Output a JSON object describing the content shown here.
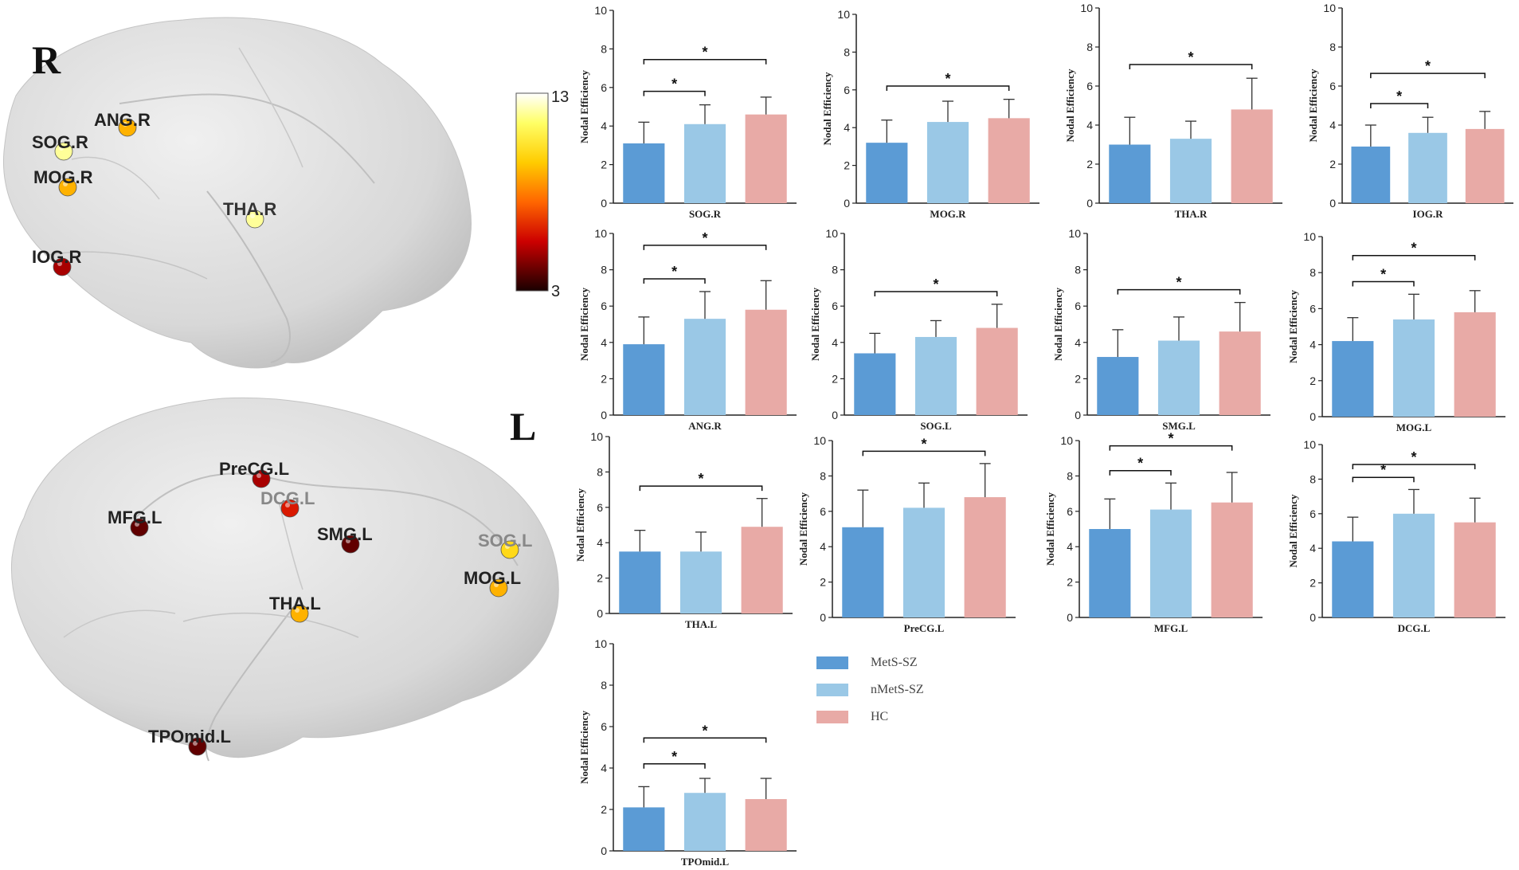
{
  "brain": {
    "right_label": "R",
    "left_label": "L",
    "colorbar": {
      "max_label": "13",
      "min_label": "3",
      "min": 3,
      "max": 13
    },
    "right_nodes": [
      {
        "label": "SOG.R",
        "value": 12,
        "label_color": "#222222"
      },
      {
        "label": "ANG.R",
        "value": 9,
        "label_color": "#222222"
      },
      {
        "label": "MOG.R",
        "value": 9,
        "label_color": "#222222"
      },
      {
        "label": "THA.R",
        "value": 12,
        "label_color": "#333333"
      },
      {
        "label": "IOG.R",
        "value": 5,
        "label_color": "#222222"
      }
    ],
    "left_nodes": [
      {
        "label": "PreCG.L",
        "value": 5,
        "label_color": "#222222"
      },
      {
        "label": "DCG.L",
        "value": 6,
        "label_color": "#888888"
      },
      {
        "label": "MFG.L",
        "value": 4,
        "label_color": "#222222"
      },
      {
        "label": "SMG.L",
        "value": 4,
        "label_color": "#222222"
      },
      {
        "label": "SOG.L",
        "value": 10,
        "label_color": "#888888"
      },
      {
        "label": "MOG.L",
        "value": 9,
        "label_color": "#222222"
      },
      {
        "label": "THA.L",
        "value": 9,
        "label_color": "#222222"
      },
      {
        "label": "TPOmid.L",
        "value": 4,
        "label_color": "#222222"
      }
    ]
  },
  "colors": {
    "MetS-SZ": "#5b9bd5",
    "nMetS-SZ": "#9ac8e6",
    "HC": "#e8aaa6",
    "brain_fill": "#d9d9d9"
  },
  "legend": {
    "items": [
      {
        "label": "MetS-SZ",
        "color": "#5b9bd5"
      },
      {
        "label": "nMetS-SZ",
        "color": "#9ac8e6"
      },
      {
        "label": "HC",
        "color": "#e8aaa6"
      }
    ]
  },
  "chart_data": [
    {
      "type": "bar",
      "title": "SOG.R",
      "xlabel": "SOG.R",
      "ylabel": "Nodal Efficiency",
      "ylim": [
        0,
        10
      ],
      "yticks": [
        0,
        2,
        4,
        6,
        8,
        10
      ],
      "series": [
        {
          "name": "MetS-SZ",
          "value": 3.1,
          "error": 1.1
        },
        {
          "name": "nMetS-SZ",
          "value": 4.1,
          "error": 1.0
        },
        {
          "name": "HC",
          "value": 4.6,
          "error": 0.9
        }
      ],
      "significance": [
        {
          "from": "MetS-SZ",
          "to": "nMetS-SZ",
          "label": "*"
        },
        {
          "from": "MetS-SZ",
          "to": "HC",
          "label": "*"
        }
      ]
    },
    {
      "type": "bar",
      "title": "MOG.R",
      "xlabel": "MOG.R",
      "ylabel": "Nodal Efficiency",
      "ylim": [
        0,
        10
      ],
      "yticks": [
        0,
        2,
        4,
        6,
        8,
        10
      ],
      "series": [
        {
          "name": "MetS-SZ",
          "value": 3.2,
          "error": 1.2
        },
        {
          "name": "nMetS-SZ",
          "value": 4.3,
          "error": 1.1
        },
        {
          "name": "HC",
          "value": 4.5,
          "error": 1.0
        }
      ],
      "significance": [
        {
          "from": "MetS-SZ",
          "to": "HC",
          "label": "*"
        }
      ]
    },
    {
      "type": "bar",
      "title": "THA.R",
      "xlabel": "THA.R",
      "ylabel": "Nodal Efficiency",
      "ylim": [
        0,
        10
      ],
      "yticks": [
        0,
        2,
        4,
        6,
        8,
        10
      ],
      "series": [
        {
          "name": "MetS-SZ",
          "value": 3.0,
          "error": 1.4
        },
        {
          "name": "nMetS-SZ",
          "value": 3.3,
          "error": 0.9
        },
        {
          "name": "HC",
          "value": 4.8,
          "error": 1.6
        }
      ],
      "significance": [
        {
          "from": "MetS-SZ",
          "to": "HC",
          "label": "*"
        }
      ]
    },
    {
      "type": "bar",
      "title": "IOG.R",
      "xlabel": "IOG.R",
      "ylabel": "Nodal Efficiency",
      "ylim": [
        0,
        10
      ],
      "yticks": [
        0,
        2,
        4,
        6,
        8,
        10
      ],
      "series": [
        {
          "name": "MetS-SZ",
          "value": 2.9,
          "error": 1.1
        },
        {
          "name": "nMetS-SZ",
          "value": 3.6,
          "error": 0.8
        },
        {
          "name": "HC",
          "value": 3.8,
          "error": 0.9
        }
      ],
      "significance": [
        {
          "from": "MetS-SZ",
          "to": "nMetS-SZ",
          "label": "*"
        },
        {
          "from": "MetS-SZ",
          "to": "HC",
          "label": "*"
        }
      ]
    },
    {
      "type": "bar",
      "title": "ANG.R",
      "xlabel": "ANG.R",
      "ylabel": "Nodal Efficiency",
      "ylim": [
        0,
        10
      ],
      "yticks": [
        0,
        2,
        4,
        6,
        8,
        10
      ],
      "series": [
        {
          "name": "MetS-SZ",
          "value": 3.9,
          "error": 1.5
        },
        {
          "name": "nMetS-SZ",
          "value": 5.3,
          "error": 1.5
        },
        {
          "name": "HC",
          "value": 5.8,
          "error": 1.6
        }
      ],
      "significance": [
        {
          "from": "MetS-SZ",
          "to": "nMetS-SZ",
          "label": "*"
        },
        {
          "from": "MetS-SZ",
          "to": "HC",
          "label": "*"
        }
      ]
    },
    {
      "type": "bar",
      "title": "SOG.L",
      "xlabel": "SOG.L",
      "ylabel": "Nodal Efficiency",
      "ylim": [
        0,
        10
      ],
      "yticks": [
        0,
        2,
        4,
        6,
        8,
        10
      ],
      "series": [
        {
          "name": "MetS-SZ",
          "value": 3.4,
          "error": 1.1
        },
        {
          "name": "nMetS-SZ",
          "value": 4.3,
          "error": 0.9
        },
        {
          "name": "HC",
          "value": 4.8,
          "error": 1.3
        }
      ],
      "significance": [
        {
          "from": "MetS-SZ",
          "to": "HC",
          "label": "*"
        }
      ]
    },
    {
      "type": "bar",
      "title": "SMG.L",
      "xlabel": "SMG.L",
      "ylabel": "Nodal Efficiency",
      "ylim": [
        0,
        10
      ],
      "yticks": [
        0,
        2,
        4,
        6,
        8,
        10
      ],
      "series": [
        {
          "name": "MetS-SZ",
          "value": 3.2,
          "error": 1.5
        },
        {
          "name": "nMetS-SZ",
          "value": 4.1,
          "error": 1.3
        },
        {
          "name": "HC",
          "value": 4.6,
          "error": 1.6
        }
      ],
      "significance": [
        {
          "from": "MetS-SZ",
          "to": "HC",
          "label": "*"
        }
      ]
    },
    {
      "type": "bar",
      "title": "MOG.L",
      "xlabel": "MOG.L",
      "ylabel": "Nodal Efficiency",
      "ylim": [
        0,
        10
      ],
      "yticks": [
        0,
        2,
        4,
        6,
        8,
        10
      ],
      "series": [
        {
          "name": "MetS-SZ",
          "value": 4.2,
          "error": 1.3
        },
        {
          "name": "nMetS-SZ",
          "value": 5.4,
          "error": 1.4
        },
        {
          "name": "HC",
          "value": 5.8,
          "error": 1.2
        }
      ],
      "significance": [
        {
          "from": "MetS-SZ",
          "to": "nMetS-SZ",
          "label": "*"
        },
        {
          "from": "MetS-SZ",
          "to": "HC",
          "label": "*"
        }
      ]
    },
    {
      "type": "bar",
      "title": "THA.L",
      "xlabel": "THA.L",
      "ylabel": "Nodal Efficiency",
      "ylim": [
        0,
        10
      ],
      "yticks": [
        0,
        2,
        4,
        6,
        8,
        10
      ],
      "series": [
        {
          "name": "MetS-SZ",
          "value": 3.5,
          "error": 1.2
        },
        {
          "name": "nMetS-SZ",
          "value": 3.5,
          "error": 1.1
        },
        {
          "name": "HC",
          "value": 4.9,
          "error": 1.6
        }
      ],
      "significance": [
        {
          "from": "MetS-SZ",
          "to": "HC",
          "label": "*"
        }
      ]
    },
    {
      "type": "bar",
      "title": "PreCG.L",
      "xlabel": "PreCG.L",
      "ylabel": "Nodal Efficiency",
      "ylim": [
        0,
        10
      ],
      "yticks": [
        0,
        2,
        4,
        6,
        8,
        10
      ],
      "series": [
        {
          "name": "MetS-SZ",
          "value": 5.1,
          "error": 2.1
        },
        {
          "name": "nMetS-SZ",
          "value": 6.2,
          "error": 1.4
        },
        {
          "name": "HC",
          "value": 6.8,
          "error": 1.9
        }
      ],
      "significance": [
        {
          "from": "MetS-SZ",
          "to": "HC",
          "label": "*"
        }
      ]
    },
    {
      "type": "bar",
      "title": "MFG.L",
      "xlabel": "MFG.L",
      "ylabel": "Nodal Efficiency",
      "ylim": [
        0,
        10
      ],
      "yticks": [
        0,
        2,
        4,
        6,
        8,
        10
      ],
      "series": [
        {
          "name": "MetS-SZ",
          "value": 5.0,
          "error": 1.7
        },
        {
          "name": "nMetS-SZ",
          "value": 6.1,
          "error": 1.5
        },
        {
          "name": "HC",
          "value": 6.5,
          "error": 1.7
        }
      ],
      "significance": [
        {
          "from": "MetS-SZ",
          "to": "nMetS-SZ",
          "label": "*"
        },
        {
          "from": "MetS-SZ",
          "to": "HC",
          "label": "*"
        }
      ]
    },
    {
      "type": "bar",
      "title": "DCG.L",
      "xlabel": "DCG.L",
      "ylabel": "Nodal Efficiency",
      "ylim": [
        0,
        10
      ],
      "yticks": [
        0,
        2,
        4,
        6,
        8,
        10
      ],
      "series": [
        {
          "name": "MetS-SZ",
          "value": 4.4,
          "error": 1.4
        },
        {
          "name": "nMetS-SZ",
          "value": 6.0,
          "error": 1.4
        },
        {
          "name": "HC",
          "value": 5.5,
          "error": 1.4
        }
      ],
      "significance": [
        {
          "from": "MetS-SZ",
          "to": "nMetS-SZ",
          "label": "*"
        },
        {
          "from": "MetS-SZ",
          "to": "HC",
          "label": "*"
        }
      ]
    },
    {
      "type": "bar",
      "title": "TPOmid.L",
      "xlabel": "TPOmid.L",
      "ylabel": "Nodal Efficiency",
      "ylim": [
        0,
        10
      ],
      "yticks": [
        0,
        2,
        4,
        6,
        8,
        10
      ],
      "series": [
        {
          "name": "MetS-SZ",
          "value": 2.1,
          "error": 1.0
        },
        {
          "name": "nMetS-SZ",
          "value": 2.8,
          "error": 0.7
        },
        {
          "name": "HC",
          "value": 2.5,
          "error": 1.0
        }
      ],
      "significance": [
        {
          "from": "MetS-SZ",
          "to": "nMetS-SZ",
          "label": "*"
        },
        {
          "from": "MetS-SZ",
          "to": "HC",
          "label": "*"
        }
      ]
    }
  ]
}
